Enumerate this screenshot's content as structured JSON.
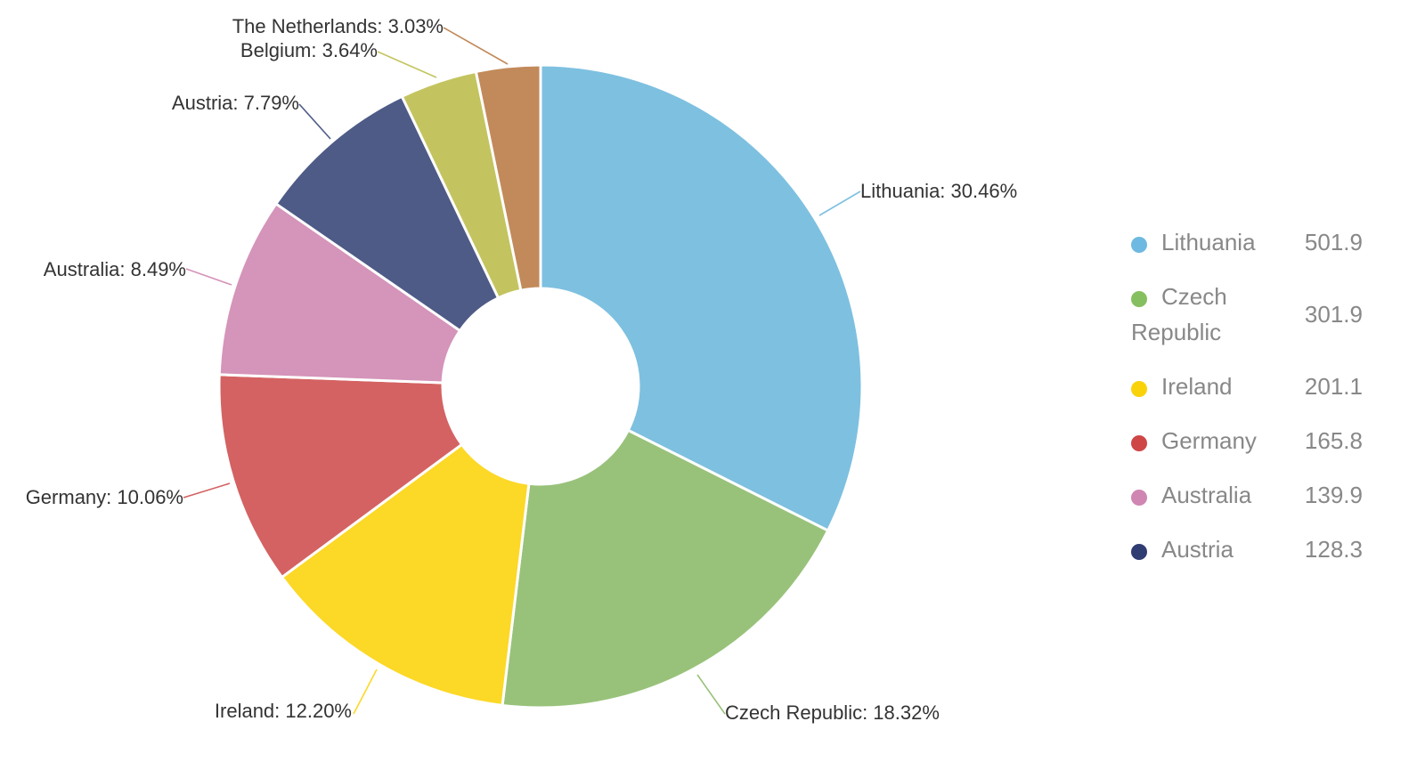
{
  "chart_data": {
    "type": "pie",
    "title": "",
    "donut": true,
    "slices": [
      {
        "name": "Lithuania",
        "percent": 30.46,
        "label": "Lithuania: 30.46%",
        "color": "#7ec0e0"
      },
      {
        "name": "Czech Republic",
        "percent": 18.32,
        "label": "Czech Republic: 18.32%",
        "color": "#98c27a"
      },
      {
        "name": "Ireland",
        "percent": 12.2,
        "label": "Ireland: 12.20%",
        "color": "#fcd827"
      },
      {
        "name": "Germany",
        "percent": 10.06,
        "label": "Germany: 10.06%",
        "color": "#d46262"
      },
      {
        "name": "Australia",
        "percent": 8.49,
        "label": "Australia: 8.49%",
        "color": "#d594b9"
      },
      {
        "name": "Austria",
        "percent": 7.79,
        "label": "Austria: 7.79%",
        "color": "#4e5b87"
      },
      {
        "name": "Belgium",
        "percent": 3.64,
        "label": "Belgium: 3.64%",
        "color": "#c3c45f"
      },
      {
        "name": "The Netherlands",
        "percent": 3.03,
        "label": "The Netherlands: 3.03%",
        "color": "#c28a5a"
      }
    ],
    "legend": {
      "placement": "right",
      "items": [
        {
          "name": "Lithuania",
          "value": "501.9",
          "color": "#6db9e1"
        },
        {
          "name": "Czech Republic",
          "value": "301.9",
          "color": "#86bf5f"
        },
        {
          "name": "Ireland",
          "value": "201.1",
          "color": "#fad20a"
        },
        {
          "name": "Germany",
          "value": "165.8",
          "color": "#cf4646"
        },
        {
          "name": "Australia",
          "value": "139.9",
          "color": "#cf86b3"
        },
        {
          "name": "Austria",
          "value": "128.3",
          "color": "#2f3d72"
        }
      ]
    }
  }
}
